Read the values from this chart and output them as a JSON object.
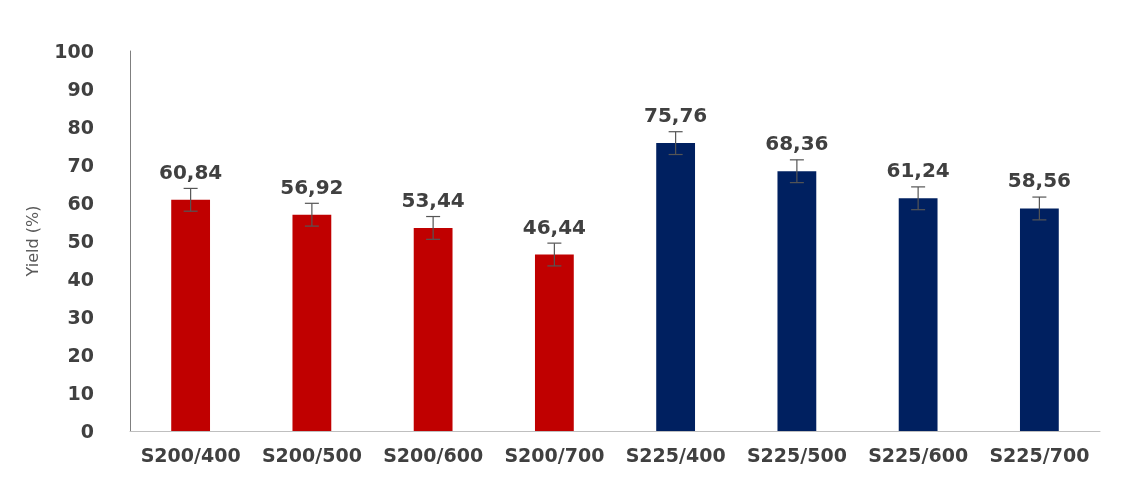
{
  "chart_data": {
    "type": "bar",
    "ylabel": "Yield (%)",
    "categories": [
      "S200/400",
      "S200/500",
      "S200/600",
      "S200/700",
      "S225/400",
      "S225/500",
      "S225/600",
      "S225/700"
    ],
    "values": [
      60.84,
      56.92,
      53.44,
      46.44,
      75.76,
      68.36,
      61.24,
      58.56
    ],
    "value_labels": [
      "60,84",
      "56,92",
      "53,44",
      "46,44",
      "75,76",
      "68,36",
      "61,24",
      "58,56"
    ],
    "errors": [
      3,
      3,
      3,
      3,
      3,
      3,
      3,
      3
    ],
    "colors": [
      "#c00000",
      "#c00000",
      "#c00000",
      "#c00000",
      "#002060",
      "#002060",
      "#002060",
      "#002060"
    ],
    "ylim": [
      0,
      100
    ],
    "yticks": [
      0,
      10,
      20,
      30,
      40,
      50,
      60,
      70,
      80,
      90,
      100
    ],
    "grid": false
  }
}
